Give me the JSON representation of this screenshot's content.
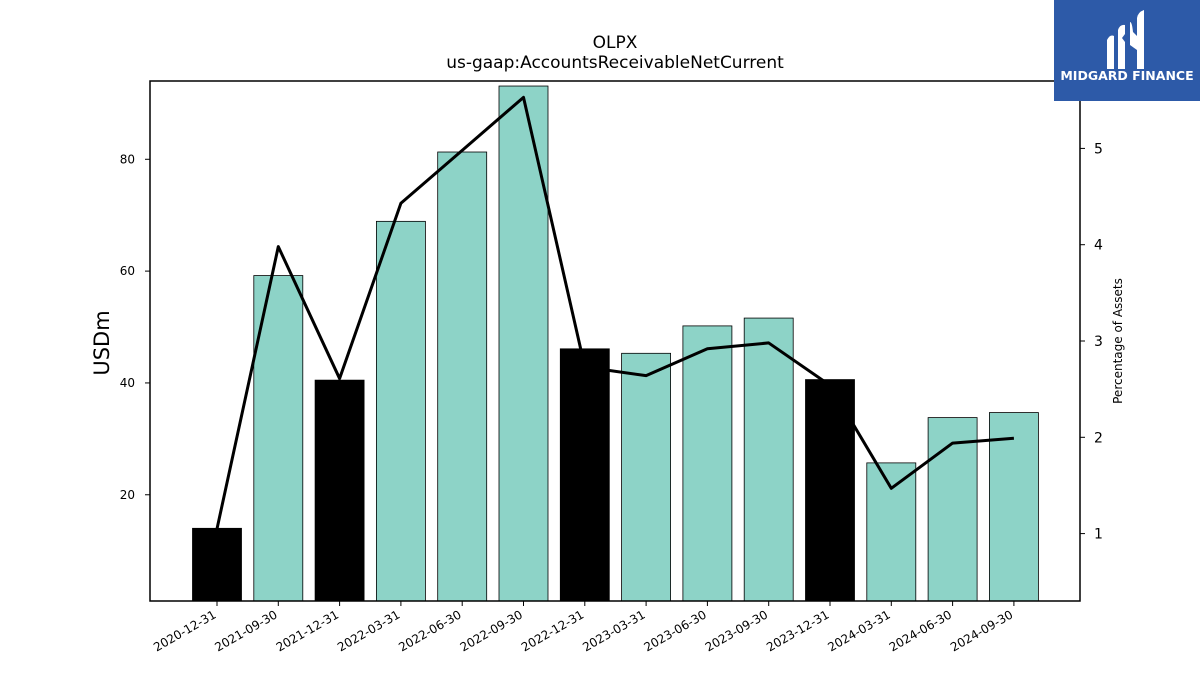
{
  "chart_data": {
    "type": "bar",
    "title": "OLPX",
    "subtitle": "us-gaap:AccountsReceivableNetCurrent",
    "ylabel": "USDm",
    "ylabel_right": "Percentage of Assets",
    "categories": [
      "2020-12-31",
      "2021-09-30",
      "2021-12-31",
      "2022-03-31",
      "2022-06-30",
      "2022-09-30",
      "2022-12-31",
      "2023-03-31",
      "2023-06-30",
      "2023-09-30",
      "2023-12-31",
      "2024-03-31",
      "2024-06-30",
      "2024-09-30"
    ],
    "series": [
      {
        "type": "bar",
        "values": [
          14.0,
          59.2,
          40.5,
          68.9,
          81.3,
          93.1,
          46.1,
          45.3,
          50.2,
          51.6,
          40.6,
          25.7,
          33.8,
          34.7
        ]
      },
      {
        "type": "line",
        "axis": "right",
        "values": [
          1.05,
          3.98,
          2.61,
          4.43,
          4.98,
          5.53,
          2.73,
          2.64,
          2.92,
          2.98,
          2.54,
          1.47,
          1.94,
          1.99
        ]
      }
    ],
    "highlighted_categories": [
      "2020-12-31",
      "2021-12-31",
      "2022-12-31",
      "2023-12-31"
    ],
    "colors": {
      "bar": "#8dd3c7",
      "highlight": "#000000",
      "line": "#000000"
    },
    "ylim": [
      1,
      94
    ],
    "ylim_right": [
      0.3,
      5.7
    ],
    "yticks": [
      20,
      40,
      60,
      80
    ],
    "yticks_right": [
      1,
      2,
      3,
      4,
      5
    ],
    "grid": false
  },
  "logo": {
    "text": "MIDGARD FINANCE",
    "color": "#2d5aa8"
  }
}
